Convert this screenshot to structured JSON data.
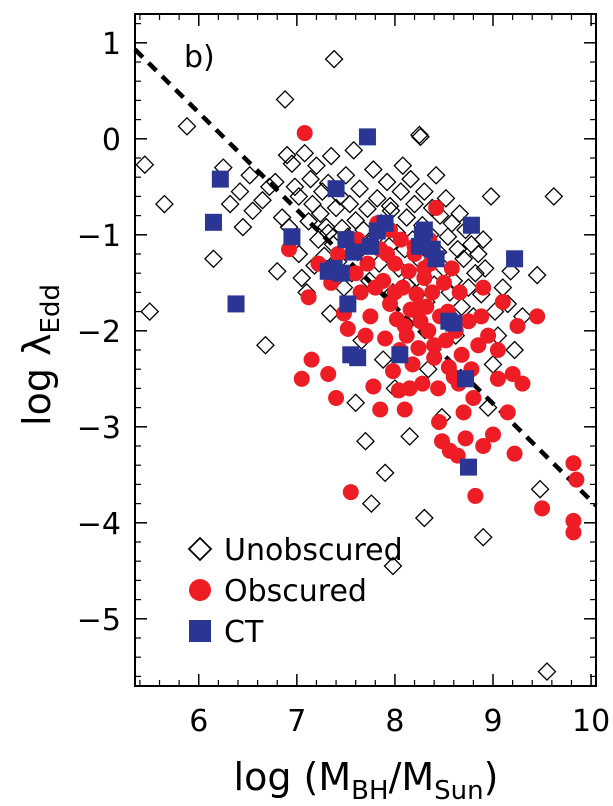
{
  "chart_data": {
    "type": "scatter",
    "panel_label": "b)",
    "xlabel": {
      "prefix": "log  (M",
      "sub1": "BH",
      "mid": "/M",
      "sub2": "Sun",
      "suffix": ")"
    },
    "ylabel": {
      "main": "log  λ",
      "sub": "Edd"
    },
    "xlim": [
      5.35,
      10.05
    ],
    "ylim": [
      -5.7,
      1.3
    ],
    "xticks": [
      6,
      7,
      8,
      9,
      10
    ],
    "xtick_labels": [
      "6",
      "7",
      "8",
      "9",
      "10"
    ],
    "yticks": [
      -5,
      -4,
      -3,
      -2,
      -1,
      0,
      1
    ],
    "ytick_labels": [
      "−5",
      "−4",
      "−3",
      "−2",
      "−1",
      "0",
      "1"
    ],
    "grid": false,
    "legend_position": "bottom-left",
    "fit_line": {
      "style": "dashed",
      "color": "#000000",
      "x": [
        5.35,
        10.05
      ],
      "y": [
        0.93,
        -3.82
      ]
    },
    "series": [
      {
        "name": "Unobscured",
        "marker": "open-diamond",
        "color": "#000000",
        "points": [
          [
            5.45,
            -0.27
          ],
          [
            5.5,
            -1.8
          ],
          [
            5.65,
            -0.68
          ],
          [
            5.88,
            0.13
          ],
          [
            6.15,
            -1.25
          ],
          [
            6.25,
            -0.3
          ],
          [
            6.32,
            -0.68
          ],
          [
            6.42,
            -0.55
          ],
          [
            6.45,
            -0.92
          ],
          [
            6.52,
            -0.38
          ],
          [
            6.55,
            -0.75
          ],
          [
            6.65,
            -0.64
          ],
          [
            6.68,
            -2.15
          ],
          [
            6.72,
            -0.5
          ],
          [
            6.78,
            -0.45
          ],
          [
            6.8,
            -1.38
          ],
          [
            6.85,
            -0.82
          ],
          [
            6.88,
            0.41
          ],
          [
            6.9,
            -0.17
          ],
          [
            6.92,
            -0.92
          ],
          [
            6.95,
            -0.26
          ],
          [
            6.98,
            -0.5
          ],
          [
            7.02,
            -0.6
          ],
          [
            7.05,
            -1.45
          ],
          [
            7.08,
            -0.15
          ],
          [
            7.1,
            -1.6
          ],
          [
            7.12,
            -0.86
          ],
          [
            7.14,
            -0.42
          ],
          [
            7.16,
            -0.68
          ],
          [
            7.18,
            -1.32
          ],
          [
            7.2,
            -0.28
          ],
          [
            7.22,
            -1.05
          ],
          [
            7.24,
            -0.78
          ],
          [
            7.26,
            -0.55
          ],
          [
            7.28,
            -1.22
          ],
          [
            7.3,
            -0.92
          ],
          [
            7.32,
            -0.46
          ],
          [
            7.34,
            -1.82
          ],
          [
            7.35,
            -0.18
          ],
          [
            7.37,
            -1.1
          ],
          [
            7.38,
            0.83
          ],
          [
            7.4,
            -0.72
          ],
          [
            7.42,
            -1.28
          ],
          [
            7.44,
            -0.6
          ],
          [
            7.46,
            -0.93
          ],
          [
            7.48,
            -1.55
          ],
          [
            7.5,
            -0.38
          ],
          [
            7.52,
            -1.02
          ],
          [
            7.54,
            -0.68
          ],
          [
            7.56,
            -1.4
          ],
          [
            7.58,
            -0.12
          ],
          [
            7.6,
            -0.85
          ],
          [
            7.62,
            -1.18
          ],
          [
            7.64,
            -0.52
          ],
          [
            7.66,
            -2.1
          ],
          [
            7.68,
            -0.95
          ],
          [
            7.7,
            -3.15
          ],
          [
            7.72,
            -0.73
          ],
          [
            7.74,
            -1.48
          ],
          [
            7.76,
            -3.8
          ],
          [
            7.78,
            -0.32
          ],
          [
            7.8,
            -1.03
          ],
          [
            7.82,
            -0.62
          ],
          [
            7.84,
            -1.3
          ],
          [
            7.86,
            -0.88
          ],
          [
            7.88,
            -2.3
          ],
          [
            7.9,
            -3.48
          ],
          [
            7.92,
            -0.45
          ],
          [
            7.94,
            -1.12
          ],
          [
            7.96,
            -0.75
          ],
          [
            7.98,
            -1.6
          ],
          [
            8.0,
            -2.6
          ],
          [
            8.02,
            -0.98
          ],
          [
            8.04,
            -1.35
          ],
          [
            8.06,
            -0.55
          ],
          [
            8.08,
            -0.28
          ],
          [
            8.1,
            -1.15
          ],
          [
            8.12,
            -0.82
          ],
          [
            8.14,
            -1.9
          ],
          [
            8.16,
            -0.42
          ],
          [
            8.18,
            -1.05
          ],
          [
            8.2,
            -0.68
          ],
          [
            8.22,
            -1.45
          ],
          [
            8.24,
            -1.25
          ],
          [
            8.26,
            0.02
          ],
          [
            8.28,
            -0.9
          ],
          [
            8.3,
            -0.55
          ],
          [
            8.32,
            -1.7
          ],
          [
            8.34,
            -2.4
          ],
          [
            8.36,
            -1.0
          ],
          [
            8.38,
            -0.72
          ],
          [
            8.4,
            -1.52
          ],
          [
            8.42,
            -0.38
          ],
          [
            8.44,
            -1.18
          ],
          [
            8.46,
            -0.8
          ],
          [
            8.48,
            -2.9
          ],
          [
            8.5,
            -1.35
          ],
          [
            8.52,
            -0.62
          ],
          [
            8.54,
            -1.02
          ],
          [
            8.56,
            -1.6
          ],
          [
            8.58,
            -0.88
          ],
          [
            8.6,
            -1.48
          ],
          [
            8.62,
            -2.05
          ],
          [
            8.64,
            -1.15
          ],
          [
            8.66,
            -0.78
          ],
          [
            8.68,
            -1.75
          ],
          [
            8.7,
            -1.25
          ],
          [
            8.72,
            -0.95
          ],
          [
            8.75,
            -1.55
          ],
          [
            8.78,
            -1.1
          ],
          [
            8.8,
            -1.85
          ],
          [
            8.82,
            -1.4
          ],
          [
            8.85,
            -1.2
          ],
          [
            8.88,
            -1.62
          ],
          [
            8.9,
            -1.05
          ],
          [
            8.92,
            -1.35
          ],
          [
            8.95,
            -2.8
          ],
          [
            8.98,
            -0.6
          ],
          [
            9.02,
            -1.8
          ],
          [
            9.05,
            -2.05
          ],
          [
            9.1,
            -1.55
          ],
          [
            9.15,
            -1.72
          ],
          [
            9.18,
            -1.38
          ],
          [
            9.22,
            -2.2
          ],
          [
            9.3,
            -1.85
          ],
          [
            9.45,
            -1.42
          ],
          [
            9.48,
            -3.65
          ],
          [
            9.55,
            -5.55
          ],
          [
            9.62,
            -0.6
          ],
          [
            7.98,
            -4.45
          ],
          [
            8.9,
            -4.15
          ],
          [
            9.0,
            -2.35
          ],
          [
            8.3,
            -3.95
          ],
          [
            8.15,
            -3.1
          ],
          [
            7.6,
            -2.75
          ],
          [
            8.25,
            0.04
          ],
          [
            7.95,
            -0.7
          ],
          [
            8.12,
            -1.52
          ],
          [
            7.02,
            -1.2
          ],
          [
            7.32,
            -0.98
          ]
        ]
      },
      {
        "name": "Obscured",
        "marker": "filled-circle",
        "color": "#ee1c25",
        "points": [
          [
            6.92,
            -1.15
          ],
          [
            7.05,
            -2.5
          ],
          [
            7.08,
            0.06
          ],
          [
            7.12,
            -1.65
          ],
          [
            7.15,
            -2.3
          ],
          [
            7.22,
            -1.3
          ],
          [
            7.32,
            -2.45
          ],
          [
            7.35,
            -1.5
          ],
          [
            7.4,
            -2.7
          ],
          [
            7.42,
            -1.2
          ],
          [
            7.48,
            -1.82
          ],
          [
            7.52,
            -1.98
          ],
          [
            7.55,
            -3.68
          ],
          [
            7.58,
            -2.25
          ],
          [
            7.6,
            -1.4
          ],
          [
            7.62,
            -1.05
          ],
          [
            7.65,
            -1.6
          ],
          [
            7.7,
            -2.05
          ],
          [
            7.72,
            -1.3
          ],
          [
            7.75,
            -1.85
          ],
          [
            7.78,
            -2.58
          ],
          [
            7.8,
            -1.55
          ],
          [
            7.82,
            -0.88
          ],
          [
            7.85,
            -2.82
          ],
          [
            7.88,
            -1.48
          ],
          [
            7.9,
            -2.08
          ],
          [
            7.92,
            -1.2
          ],
          [
            7.95,
            -1.72
          ],
          [
            7.98,
            -2.42
          ],
          [
            8.0,
            -1.3
          ],
          [
            8.02,
            -1.88
          ],
          [
            8.04,
            -2.62
          ],
          [
            8.06,
            -1.05
          ],
          [
            8.08,
            -1.55
          ],
          [
            8.1,
            -2.82
          ],
          [
            8.12,
            -2.05
          ],
          [
            8.14,
            -1.38
          ],
          [
            8.16,
            -1.78
          ],
          [
            8.18,
            -2.35
          ],
          [
            8.2,
            -1.2
          ],
          [
            8.22,
            -1.62
          ],
          [
            8.24,
            -2.18
          ],
          [
            8.26,
            -1.9
          ],
          [
            8.28,
            -2.55
          ],
          [
            8.3,
            -1.45
          ],
          [
            8.32,
            -1.75
          ],
          [
            8.34,
            -2.0
          ],
          [
            8.36,
            -1.3
          ],
          [
            8.38,
            -1.6
          ],
          [
            8.4,
            -2.28
          ],
          [
            8.42,
            -0.72
          ],
          [
            8.44,
            -2.6
          ],
          [
            8.46,
            -1.85
          ],
          [
            8.48,
            -3.15
          ],
          [
            8.5,
            -1.5
          ],
          [
            8.52,
            -2.1
          ],
          [
            8.54,
            -1.8
          ],
          [
            8.56,
            -3.25
          ],
          [
            8.58,
            -1.35
          ],
          [
            8.6,
            -2.48
          ],
          [
            8.62,
            -2.0
          ],
          [
            8.64,
            -3.3
          ],
          [
            8.66,
            -1.6
          ],
          [
            8.68,
            -2.25
          ],
          [
            8.7,
            -2.85
          ],
          [
            8.72,
            -3.12
          ],
          [
            8.75,
            -1.9
          ],
          [
            8.78,
            -2.4
          ],
          [
            8.8,
            -2.7
          ],
          [
            8.82,
            -3.72
          ],
          [
            8.85,
            -2.15
          ],
          [
            8.88,
            -1.85
          ],
          [
            8.9,
            -3.2
          ],
          [
            8.95,
            -2.05
          ],
          [
            9.0,
            -3.08
          ],
          [
            9.05,
            -2.5
          ],
          [
            9.1,
            -1.7
          ],
          [
            9.15,
            -2.85
          ],
          [
            9.2,
            -2.45
          ],
          [
            9.22,
            -3.28
          ],
          [
            9.25,
            -1.95
          ],
          [
            9.3,
            -2.55
          ],
          [
            9.45,
            -1.85
          ],
          [
            9.5,
            -3.85
          ],
          [
            9.82,
            -3.38
          ],
          [
            9.82,
            -3.98
          ],
          [
            9.85,
            -3.55
          ],
          [
            9.82,
            -4.1
          ],
          [
            8.2,
            -1.12
          ],
          [
            8.35,
            -1.05
          ],
          [
            8.05,
            -2.2
          ],
          [
            7.95,
            -0.95
          ],
          [
            8.15,
            -2.6
          ],
          [
            8.45,
            -2.95
          ],
          [
            8.3,
            -1.35
          ],
          [
            8.0,
            -1.6
          ],
          [
            8.9,
            -1.55
          ],
          [
            8.4,
            -2.15
          ],
          [
            7.85,
            -1.15
          ],
          [
            8.55,
            -2.38
          ],
          [
            8.1,
            -1.95
          ],
          [
            8.65,
            -2.55
          ],
          [
            8.25,
            -1.75
          ],
          [
            9.05,
            -2.2
          ]
        ]
      },
      {
        "name": "CT",
        "marker": "filled-square",
        "color": "#2b3593",
        "points": [
          [
            6.15,
            -0.87
          ],
          [
            6.22,
            -0.42
          ],
          [
            6.38,
            -1.72
          ],
          [
            6.95,
            -1.02
          ],
          [
            7.32,
            -1.38
          ],
          [
            7.38,
            -1.35
          ],
          [
            7.4,
            -0.52
          ],
          [
            7.45,
            -1.4
          ],
          [
            7.5,
            -1.05
          ],
          [
            7.52,
            -1.72
          ],
          [
            7.55,
            -2.25
          ],
          [
            7.58,
            -1.18
          ],
          [
            7.62,
            -2.28
          ],
          [
            7.72,
            0.02
          ],
          [
            7.75,
            -1.12
          ],
          [
            7.82,
            -0.96
          ],
          [
            7.9,
            -0.88
          ],
          [
            8.05,
            -2.25
          ],
          [
            8.25,
            -1.12
          ],
          [
            8.28,
            -1.0
          ],
          [
            8.3,
            -0.95
          ],
          [
            8.38,
            -1.15
          ],
          [
            8.42,
            -1.25
          ],
          [
            8.55,
            -1.9
          ],
          [
            8.6,
            -1.92
          ],
          [
            8.72,
            -2.5
          ],
          [
            8.75,
            -3.42
          ],
          [
            8.78,
            -0.9
          ],
          [
            9.22,
            -1.25
          ]
        ]
      }
    ]
  }
}
